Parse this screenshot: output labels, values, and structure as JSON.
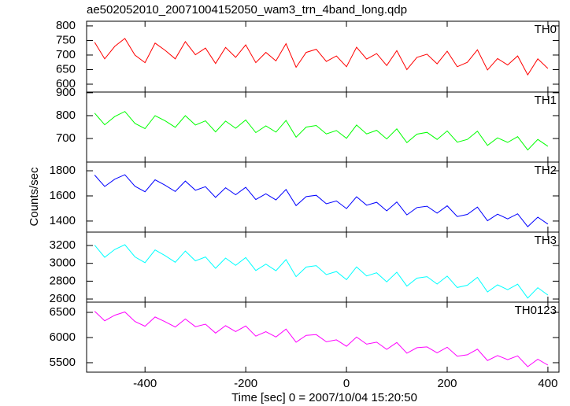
{
  "title": "ae502052010_20071004152050_wam3_trn_4band_long.qdp",
  "x_label": "Time [sec] 0 = 2007/10/04 15:20:50",
  "y_label": "Counts/sec",
  "x": [
    -500,
    -480,
    -460,
    -440,
    -420,
    -400,
    -380,
    -360,
    -340,
    -320,
    -300,
    -280,
    -260,
    -240,
    -220,
    -200,
    -180,
    -160,
    -140,
    -120,
    -100,
    -80,
    -60,
    -40,
    -20,
    0,
    20,
    40,
    60,
    80,
    100,
    120,
    140,
    160,
    180,
    200,
    220,
    240,
    260,
    280,
    300,
    320,
    340,
    360,
    380,
    400
  ],
  "xlim": [
    -516,
    422
  ],
  "xticks": [
    -400,
    -200,
    0,
    200,
    400
  ],
  "chart_data": [
    {
      "type": "line",
      "ylim": [
        573,
        816
      ],
      "yticks": [
        600,
        650,
        700,
        750,
        800
      ],
      "series": [
        {
          "name": "TH0",
          "color": "#ff0000",
          "values": [
            744,
            687,
            730,
            757,
            700,
            674,
            741,
            716,
            687,
            746,
            701,
            724,
            671,
            726,
            692,
            735,
            674,
            709,
            680,
            739,
            658,
            709,
            720,
            678,
            697,
            660,
            727,
            686,
            705,
            664,
            715,
            650,
            692,
            703,
            670,
            713,
            660,
            675,
            718,
            649,
            688,
            666,
            697,
            632,
            687,
            654
          ]
        }
      ]
    },
    {
      "type": "line",
      "ylim": [
        597,
        903
      ],
      "yticks": [
        700,
        800,
        900
      ],
      "series": [
        {
          "name": "TH1",
          "color": "#00ff00",
          "values": [
            811,
            760,
            796,
            818,
            766,
            743,
            800,
            777,
            749,
            800,
            759,
            777,
            729,
            776,
            745,
            781,
            726,
            755,
            728,
            779,
            706,
            750,
            757,
            720,
            735,
            701,
            759,
            720,
            736,
            698,
            742,
            682,
            719,
            727,
            696,
            733,
            684,
            696,
            732,
            670,
            703,
            683,
            708,
            650,
            696,
            666
          ]
        }
      ]
    },
    {
      "type": "line",
      "ylim": [
        1312,
        1869
      ],
      "yticks": [
        1400,
        1600,
        1800
      ],
      "series": [
        {
          "name": "TH2",
          "color": "#0000ff",
          "values": [
            1766,
            1675,
            1733,
            1768,
            1677,
            1633,
            1728,
            1685,
            1635,
            1718,
            1645,
            1673,
            1588,
            1665,
            1609,
            1668,
            1571,
            1617,
            1568,
            1651,
            1523,
            1594,
            1605,
            1537,
            1560,
            1499,
            1593,
            1526,
            1549,
            1481,
            1552,
            1449,
            1507,
            1518,
            1463,
            1521,
            1436,
            1453,
            1511,
            1402,
            1455,
            1417,
            1458,
            1355,
            1431,
            1376
          ]
        }
      ]
    },
    {
      "type": "line",
      "ylim": [
        2565,
        3350
      ],
      "yticks": [
        2600,
        2800,
        3000,
        3200
      ],
      "series": [
        {
          "name": "TH3",
          "color": "#00ffff",
          "values": [
            3204,
            3068,
            3156,
            3209,
            3072,
            3008,
            3150,
            3086,
            3012,
            3137,
            3028,
            3071,
            2944,
            3059,
            2977,
            3065,
            2920,
            2991,
            2917,
            3042,
            2851,
            2958,
            2974,
            2874,
            2908,
            2817,
            2960,
            2859,
            2894,
            2793,
            2900,
            2745,
            2834,
            2851,
            2768,
            2857,
            2729,
            2755,
            2843,
            2680,
            2759,
            2704,
            2766,
            2611,
            2727,
            2644
          ]
        }
      ]
    },
    {
      "type": "line",
      "ylim": [
        5312,
        6703
      ],
      "yticks": [
        5500,
        6000,
        6500
      ],
      "series": [
        {
          "name": "TH0123",
          "color": "#ff00ff",
          "values": [
            6522,
            6333,
            6444,
            6507,
            6318,
            6224,
            6407,
            6314,
            6209,
            6368,
            6215,
            6266,
            6089,
            6236,
            6118,
            6229,
            6028,
            6115,
            6010,
            6169,
            5908,
            6043,
            6058,
            5916,
            5955,
            5826,
            6009,
            5868,
            5907,
            5766,
            5901,
            5688,
            5798,
            5813,
            5696,
            5807,
            5630,
            5657,
            5768,
            5543,
            5642,
            5560,
            5635,
            5422,
            5569,
            5452
          ]
        }
      ]
    }
  ]
}
